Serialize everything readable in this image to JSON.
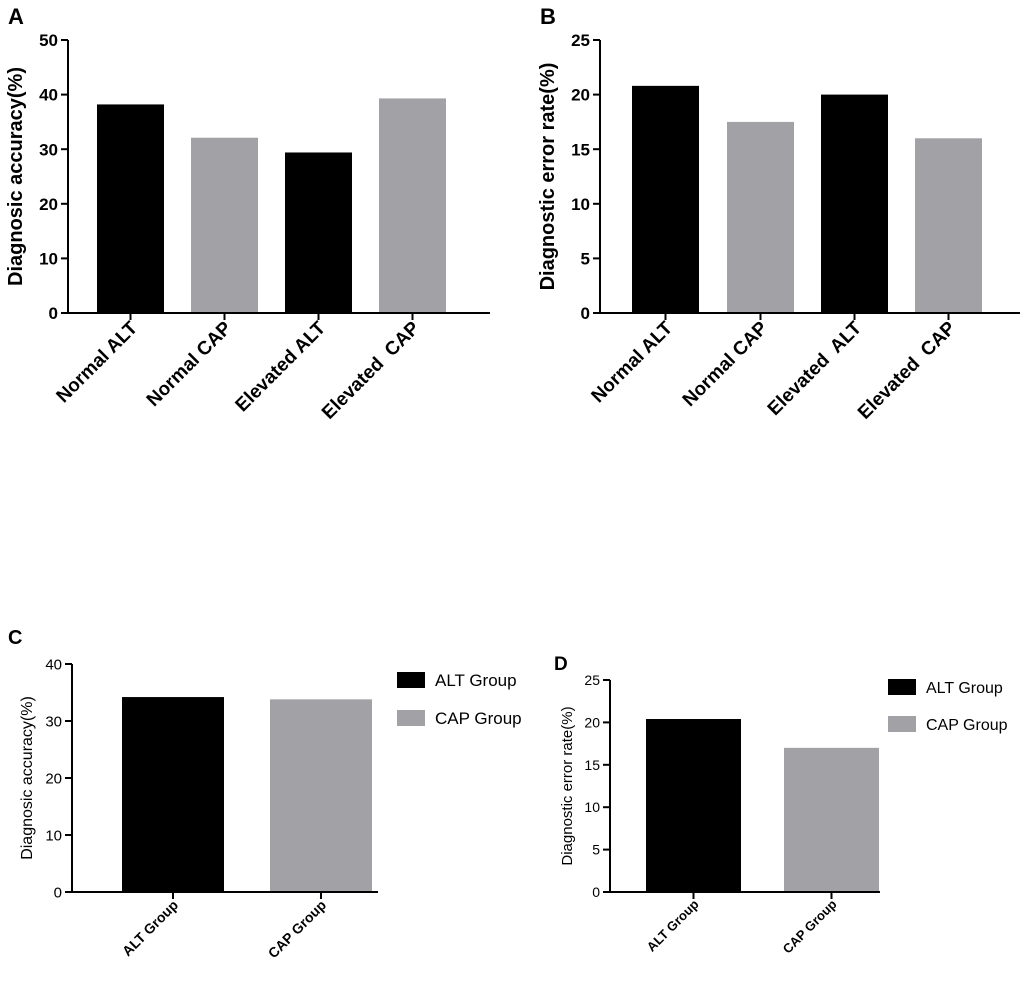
{
  "colors": {
    "black": "#000000",
    "gray": "#a2a2a6",
    "axis": "#000000"
  },
  "chart_data": [
    {
      "panel": "A",
      "type": "bar",
      "categories": [
        "Normal ALT",
        "Normal CAP",
        "Elevated ALT",
        "Elevated  CAP"
      ],
      "values": [
        38.2,
        32.1,
        29.4,
        39.3
      ],
      "bar_colors": [
        "black",
        "gray",
        "black",
        "gray"
      ],
      "ylabel": "Diagnosic accuracy(%)",
      "ylim": [
        0,
        50
      ],
      "yticks": [
        "0",
        "10",
        "20",
        "30",
        "40",
        "50"
      ],
      "legend": []
    },
    {
      "panel": "B",
      "type": "bar",
      "categories": [
        "Normal ALT",
        "Normal CAP",
        "Elevated  ALT",
        "Elevated  CAP"
      ],
      "values": [
        20.8,
        17.5,
        20.0,
        16.0
      ],
      "bar_colors": [
        "black",
        "gray",
        "black",
        "gray"
      ],
      "ylabel": "Diagnostic error rate(%)",
      "ylim": [
        0,
        25
      ],
      "yticks": [
        "0",
        "5",
        "10",
        "15",
        "20",
        "25"
      ],
      "legend": []
    },
    {
      "panel": "C",
      "type": "bar",
      "categories": [
        "ALT Group",
        "CAP Group"
      ],
      "values": [
        34.2,
        33.8
      ],
      "bar_colors": [
        "black",
        "gray"
      ],
      "ylabel": "Diagnosic accuracy(%)",
      "ylim": [
        0,
        40
      ],
      "yticks": [
        "0",
        "10",
        "20",
        "30",
        "40"
      ],
      "legend": [
        {
          "label": "ALT Group",
          "color": "black"
        },
        {
          "label": "CAP Group",
          "color": "gray"
        }
      ]
    },
    {
      "panel": "D",
      "type": "bar",
      "categories": [
        "ALT Group",
        "CAP Group"
      ],
      "values": [
        20.4,
        17.0
      ],
      "bar_colors": [
        "black",
        "gray"
      ],
      "ylabel": "Diagnostic error rate(%)",
      "ylim": [
        0,
        25
      ],
      "yticks": [
        "0",
        "5",
        "10",
        "15",
        "20",
        "25"
      ],
      "legend": [
        {
          "label": "ALT Group",
          "color": "black"
        },
        {
          "label": "CAP Group",
          "color": "gray"
        }
      ]
    }
  ]
}
